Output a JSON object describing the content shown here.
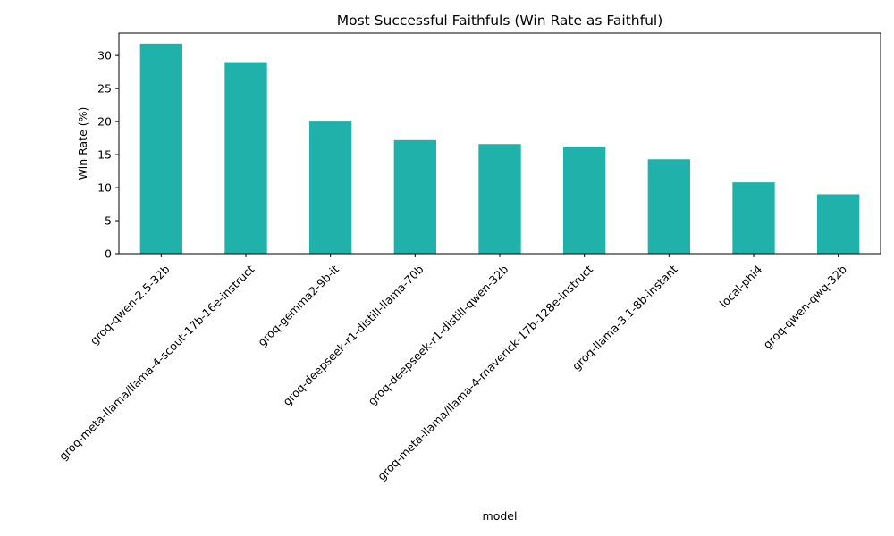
{
  "chart_data": {
    "type": "bar",
    "title": "Most Successful Faithfuls (Win Rate as Faithful)",
    "xlabel": "model",
    "ylabel": "Win Rate (%)",
    "categories": [
      "groq-qwen-2.5-32b",
      "groq-meta-llama/llama-4-scout-17b-16e-instruct",
      "groq-gemma2-9b-it",
      "groq-deepseek-r1-distill-llama-70b",
      "groq-deepseek-r1-distill-qwen-32b",
      "groq-meta-llama/llama-4-maverick-17b-128e-instruct",
      "groq-llama-3.1-8b-instant",
      "local-phi4",
      "groq-qwen-qwq-32b"
    ],
    "values": [
      31.8,
      29.0,
      20.0,
      17.2,
      16.6,
      16.2,
      14.3,
      10.8,
      9.0
    ],
    "ylim": [
      0,
      33.4
    ],
    "yticks": [
      0,
      5,
      10,
      15,
      20,
      25,
      30
    ],
    "grid": false,
    "legend": "none",
    "bar_color": "#20b2aa"
  }
}
